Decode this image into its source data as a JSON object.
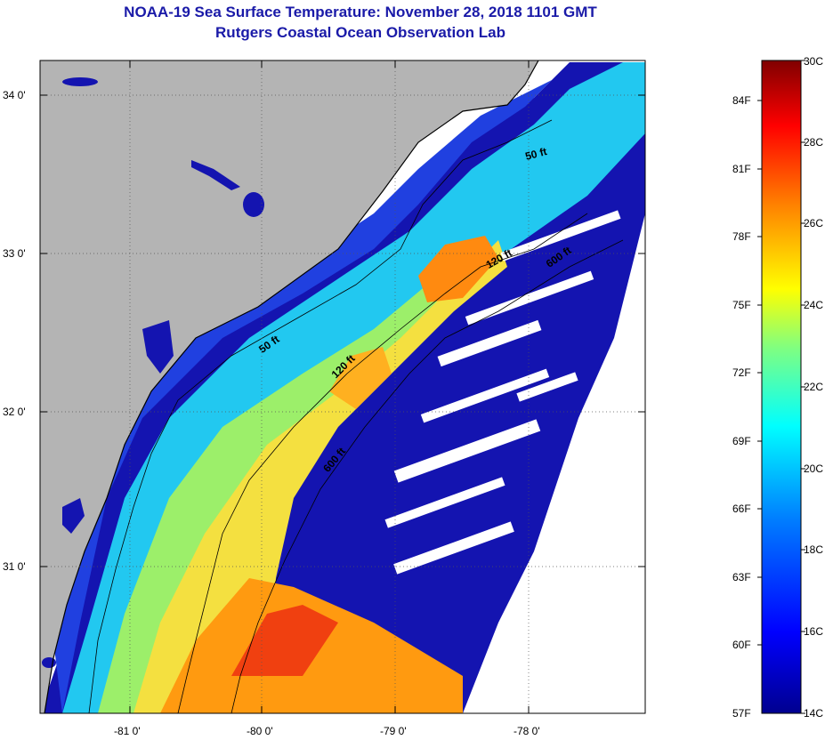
{
  "title": "NOAA-19 Sea Surface Temperature:  November 28, 2018 1101 GMT",
  "subtitle": "Rutgers Coastal Ocean Observation Lab",
  "map": {
    "lat_labels": [
      "34 0'",
      "33 0'",
      "32 0'",
      "31 0'"
    ],
    "lon_labels": [
      "-81 0'",
      "-80 0'",
      "-79 0'",
      "-78 0'"
    ],
    "contour_labels": [
      "50 ft",
      "120 ft",
      "600 ft",
      "50 ft",
      "120 ft",
      "600 ft"
    ],
    "colors": {
      "land": "#b4b4b4",
      "cloud": "#ffffff",
      "coast": "#000000"
    }
  },
  "colorbar": {
    "fahrenheit_labels": [
      "84F",
      "81F",
      "78F",
      "75F",
      "72F",
      "69F",
      "66F",
      "63F",
      "60F",
      "57F"
    ],
    "celsius_labels": [
      "30C",
      "28C",
      "26C",
      "24C",
      "22C",
      "20C",
      "18C",
      "16C",
      "14C"
    ],
    "range_c": [
      14,
      30
    ],
    "colormap": [
      "#00008f",
      "#0000ff",
      "#0080ff",
      "#00ffff",
      "#80ff80",
      "#ffff00",
      "#ff8000",
      "#ff0000",
      "#800000"
    ]
  }
}
